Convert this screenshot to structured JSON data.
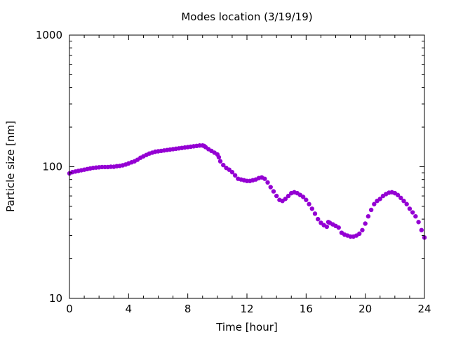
{
  "chart_data": {
    "type": "scatter",
    "title": "Modes location (3/19/19)",
    "xlabel": "Time [hour]",
    "ylabel": "Particle size [nm]",
    "xlim": [
      0,
      24
    ],
    "ylim": [
      10,
      1000
    ],
    "yscale": "log",
    "grid": false,
    "legend": "none",
    "x_ticks": [
      0,
      4,
      8,
      12,
      16,
      20,
      24
    ],
    "x_tick_labels": [
      "0",
      "4",
      "8",
      "12",
      "16",
      "20",
      "24"
    ],
    "y_ticks": [
      10,
      100,
      1000
    ],
    "y_tick_labels": [
      "10",
      "100",
      "1000"
    ],
    "marker_color": "#9400d3",
    "series": [
      {
        "points": [
          [
            0.0,
            89
          ],
          [
            0.2,
            91
          ],
          [
            0.4,
            92
          ],
          [
            0.6,
            93
          ],
          [
            0.8,
            94
          ],
          [
            1.0,
            95
          ],
          [
            1.2,
            96
          ],
          [
            1.4,
            97
          ],
          [
            1.6,
            98
          ],
          [
            1.8,
            98.5
          ],
          [
            2.0,
            99
          ],
          [
            2.2,
            99.5
          ],
          [
            2.4,
            99.5
          ],
          [
            2.6,
            99.5
          ],
          [
            2.8,
            100
          ],
          [
            3.0,
            100
          ],
          [
            3.2,
            101
          ],
          [
            3.4,
            101.5
          ],
          [
            3.6,
            102.5
          ],
          [
            3.8,
            104
          ],
          [
            4.0,
            106
          ],
          [
            4.2,
            108
          ],
          [
            4.4,
            110
          ],
          [
            4.6,
            113
          ],
          [
            4.8,
            117
          ],
          [
            5.0,
            120
          ],
          [
            5.2,
            123
          ],
          [
            5.4,
            126
          ],
          [
            5.6,
            128
          ],
          [
            5.8,
            130
          ],
          [
            6.0,
            131
          ],
          [
            6.2,
            132
          ],
          [
            6.4,
            133
          ],
          [
            6.6,
            134
          ],
          [
            6.8,
            135
          ],
          [
            7.0,
            136
          ],
          [
            7.2,
            137
          ],
          [
            7.4,
            138
          ],
          [
            7.6,
            139
          ],
          [
            7.8,
            140
          ],
          [
            8.0,
            141
          ],
          [
            8.2,
            142
          ],
          [
            8.4,
            143
          ],
          [
            8.6,
            144
          ],
          [
            8.8,
            145
          ],
          [
            9.0,
            145
          ],
          [
            9.1,
            144
          ],
          [
            9.2,
            141
          ],
          [
            9.4,
            136
          ],
          [
            9.6,
            132
          ],
          [
            9.8,
            128
          ],
          [
            10.0,
            124
          ],
          [
            10.1,
            118
          ],
          [
            10.2,
            110
          ],
          [
            10.4,
            103
          ],
          [
            10.6,
            98
          ],
          [
            10.8,
            95
          ],
          [
            11.0,
            91
          ],
          [
            11.2,
            86
          ],
          [
            11.4,
            81
          ],
          [
            11.6,
            80
          ],
          [
            11.8,
            79
          ],
          [
            12.0,
            78
          ],
          [
            12.2,
            78
          ],
          [
            12.4,
            79
          ],
          [
            12.6,
            80
          ],
          [
            12.8,
            82
          ],
          [
            13.0,
            83
          ],
          [
            13.2,
            81
          ],
          [
            13.4,
            76
          ],
          [
            13.6,
            70
          ],
          [
            13.8,
            65
          ],
          [
            14.0,
            60
          ],
          [
            14.2,
            56
          ],
          [
            14.4,
            55
          ],
          [
            14.6,
            57
          ],
          [
            14.8,
            60
          ],
          [
            15.0,
            63
          ],
          [
            15.2,
            64
          ],
          [
            15.4,
            63
          ],
          [
            15.6,
            61
          ],
          [
            15.8,
            59
          ],
          [
            16.0,
            56
          ],
          [
            16.2,
            52
          ],
          [
            16.4,
            48
          ],
          [
            16.6,
            44
          ],
          [
            16.8,
            40
          ],
          [
            17.0,
            37.5
          ],
          [
            17.2,
            36
          ],
          [
            17.4,
            35
          ],
          [
            17.5,
            38
          ],
          [
            17.6,
            37.5
          ],
          [
            17.8,
            36.5
          ],
          [
            18.0,
            35.5
          ],
          [
            18.2,
            34.5
          ],
          [
            18.4,
            31.5
          ],
          [
            18.6,
            30.5
          ],
          [
            18.8,
            30
          ],
          [
            19.0,
            29.5
          ],
          [
            19.2,
            29.5
          ],
          [
            19.4,
            30
          ],
          [
            19.6,
            31
          ],
          [
            19.8,
            33
          ],
          [
            20.0,
            37
          ],
          [
            20.2,
            42
          ],
          [
            20.4,
            47
          ],
          [
            20.6,
            52
          ],
          [
            20.8,
            55
          ],
          [
            21.0,
            57
          ],
          [
            21.2,
            60
          ],
          [
            21.4,
            62
          ],
          [
            21.6,
            63.5
          ],
          [
            21.8,
            64
          ],
          [
            22.0,
            63
          ],
          [
            22.2,
            61
          ],
          [
            22.4,
            58
          ],
          [
            22.6,
            55
          ],
          [
            22.8,
            52
          ],
          [
            23.0,
            48
          ],
          [
            23.2,
            45
          ],
          [
            23.4,
            42
          ],
          [
            23.6,
            38
          ],
          [
            23.8,
            33
          ],
          [
            24.0,
            29
          ]
        ]
      }
    ]
  }
}
